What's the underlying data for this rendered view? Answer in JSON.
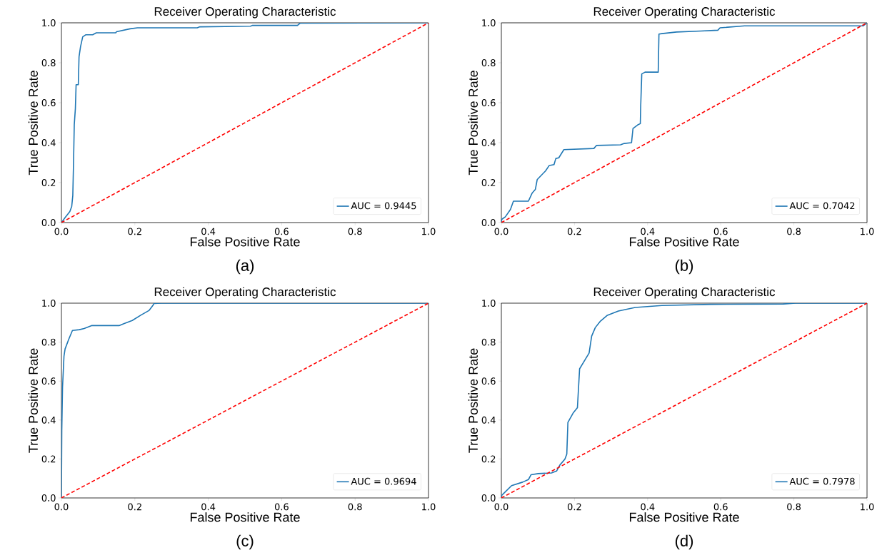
{
  "chart_data": [
    {
      "type": "line",
      "title": "Receiver Operating Characteristic",
      "xlabel": "False Positive Rate",
      "ylabel": "True Positive Rate",
      "annotations": [
        "(a)"
      ],
      "xlim": [
        0,
        1
      ],
      "ylim": [
        0,
        1
      ],
      "xticks": [
        {
          "value": 0,
          "label": "0.0"
        },
        {
          "value": 0.2,
          "label": "0.2"
        },
        {
          "value": 0.4,
          "label": "0.4"
        },
        {
          "value": 0.6,
          "label": "0.6"
        },
        {
          "value": 0.8,
          "label": "0.8"
        },
        {
          "value": 1,
          "label": "1.0"
        }
      ],
      "yticks": [
        {
          "value": 0,
          "label": "0.0"
        },
        {
          "value": 0.2,
          "label": "0.2"
        },
        {
          "value": 0.4,
          "label": "0.4"
        },
        {
          "value": 0.6,
          "label": "0.6"
        },
        {
          "value": 0.8,
          "label": "0.8"
        },
        {
          "value": 1,
          "label": "1.0"
        }
      ],
      "legend": "bottom right",
      "series": [
        {
          "name": "AUC = 0.9445",
          "color": "#1f77b4",
          "line_style": "solid",
          "x": [
            0,
            0.01,
            0.023,
            0.028,
            0.031,
            0.033,
            0.035,
            0.038,
            0.04,
            0.046,
            0.048,
            0.052,
            0.058,
            0.066,
            0.085,
            0.095,
            0.148,
            0.15,
            0.187,
            0.207,
            0.37,
            0.377,
            0.515,
            0.52,
            0.643,
            0.65,
            1
          ],
          "values": [
            0,
            0.025,
            0.055,
            0.08,
            0.135,
            0.3,
            0.49,
            0.57,
            0.69,
            0.69,
            0.83,
            0.88,
            0.93,
            0.94,
            0.94,
            0.95,
            0.95,
            0.955,
            0.97,
            0.975,
            0.975,
            0.98,
            0.983,
            0.987,
            0.987,
            0.998,
            1
          ]
        },
        {
          "color": "#ff0000",
          "line_style": "dashed",
          "x": [
            0,
            1
          ],
          "values": [
            0,
            1
          ]
        }
      ]
    },
    {
      "type": "line",
      "title": "Receiver Operating Characteristic",
      "xlabel": "False Positive Rate",
      "ylabel": "True Positive Rate",
      "annotations": [
        "(b)"
      ],
      "xlim": [
        0,
        1
      ],
      "ylim": [
        0,
        1
      ],
      "xticks": [
        {
          "value": 0,
          "label": "0.0"
        },
        {
          "value": 0.2,
          "label": "0.2"
        },
        {
          "value": 0.4,
          "label": "0.4"
        },
        {
          "value": 0.6,
          "label": "0.6"
        },
        {
          "value": 0.8,
          "label": "0.8"
        },
        {
          "value": 1,
          "label": "1.0"
        }
      ],
      "yticks": [
        {
          "value": 0,
          "label": "0.0"
        },
        {
          "value": 0.2,
          "label": "0.2"
        },
        {
          "value": 0.4,
          "label": "0.4"
        },
        {
          "value": 0.6,
          "label": "0.6"
        },
        {
          "value": 0.8,
          "label": "0.8"
        },
        {
          "value": 1,
          "label": "1.0"
        }
      ],
      "legend": "bottom right",
      "series": [
        {
          "name": "AUC = 0.7042",
          "color": "#1f77b4",
          "line_style": "solid",
          "x": [
            0,
            0.001,
            0.011,
            0.025,
            0.033,
            0.074,
            0.084,
            0.093,
            0.098,
            0.121,
            0.131,
            0.144,
            0.149,
            0.157,
            0.171,
            0.253,
            0.26,
            0.326,
            0.336,
            0.356,
            0.36,
            0.373,
            0.38,
            0.381,
            0.384,
            0.393,
            0.429,
            0.431,
            0.439,
            0.479,
            0.545,
            0.592,
            0.598,
            0.665,
            0.99,
            1
          ],
          "values": [
            0,
            0.016,
            0.029,
            0.066,
            0.107,
            0.107,
            0.147,
            0.166,
            0.215,
            0.259,
            0.286,
            0.29,
            0.321,
            0.324,
            0.365,
            0.371,
            0.386,
            0.389,
            0.396,
            0.4,
            0.471,
            0.489,
            0.495,
            0.576,
            0.744,
            0.753,
            0.753,
            0.944,
            0.946,
            0.954,
            0.959,
            0.963,
            0.975,
            0.985,
            0.985,
            1
          ]
        },
        {
          "color": "#ff0000",
          "line_style": "dashed",
          "x": [
            0,
            1
          ],
          "values": [
            0,
            1
          ]
        }
      ]
    },
    {
      "type": "line",
      "title": "Receiver Operating Characteristic",
      "xlabel": "False Positive Rate",
      "ylabel": "True Positive Rate",
      "annotations": [
        "(c)"
      ],
      "xlim": [
        0,
        1
      ],
      "ylim": [
        0,
        1
      ],
      "xticks": [
        {
          "value": 0,
          "label": "0.0"
        },
        {
          "value": 0.2,
          "label": "0.2"
        },
        {
          "value": 0.4,
          "label": "0.4"
        },
        {
          "value": 0.6,
          "label": "0.6"
        },
        {
          "value": 0.8,
          "label": "0.8"
        },
        {
          "value": 1,
          "label": "1.0"
        }
      ],
      "yticks": [
        {
          "value": 0,
          "label": "0.0"
        },
        {
          "value": 0.2,
          "label": "0.2"
        },
        {
          "value": 0.4,
          "label": "0.4"
        },
        {
          "value": 0.6,
          "label": "0.6"
        },
        {
          "value": 0.8,
          "label": "0.8"
        },
        {
          "value": 1,
          "label": "1.0"
        }
      ],
      "legend": "bottom right",
      "series": [
        {
          "name": "AUC = 0.9694",
          "color": "#1f77b4",
          "line_style": "solid",
          "x": [
            0,
            0.001,
            0.003,
            0.007,
            0.01,
            0.02,
            0.03,
            0.049,
            0.062,
            0.082,
            0.157,
            0.17,
            0.193,
            0.216,
            0.239,
            0.249,
            0.252,
            0.272,
            1
          ],
          "values": [
            0,
            0.345,
            0.568,
            0.728,
            0.765,
            0.815,
            0.86,
            0.864,
            0.87,
            0.885,
            0.885,
            0.895,
            0.911,
            0.938,
            0.963,
            0.988,
            0.998,
            1,
            1
          ]
        },
        {
          "color": "#ff0000",
          "line_style": "dashed",
          "x": [
            0,
            1
          ],
          "values": [
            0,
            1
          ]
        }
      ]
    },
    {
      "type": "line",
      "title": "Receiver Operating Characteristic",
      "xlabel": "False Positive Rate",
      "ylabel": "True Positive Rate",
      "annotations": [
        "(d)"
      ],
      "xlim": [
        0,
        1
      ],
      "ylim": [
        0,
        1
      ],
      "xticks": [
        {
          "value": 0,
          "label": "0.0"
        },
        {
          "value": 0.2,
          "label": "0.2"
        },
        {
          "value": 0.4,
          "label": "0.4"
        },
        {
          "value": 0.6,
          "label": "0.6"
        },
        {
          "value": 0.8,
          "label": "0.8"
        },
        {
          "value": 1,
          "label": "1.0"
        }
      ],
      "yticks": [
        {
          "value": 0,
          "label": "0.0"
        },
        {
          "value": 0.2,
          "label": "0.2"
        },
        {
          "value": 0.4,
          "label": "0.4"
        },
        {
          "value": 0.6,
          "label": "0.6"
        },
        {
          "value": 0.8,
          "label": "0.8"
        },
        {
          "value": 1,
          "label": "1.0"
        }
      ],
      "legend": "bottom right",
      "series": [
        {
          "name": "AUC = 0.7978",
          "color": "#1f77b4",
          "line_style": "solid",
          "x": [
            0,
            0.001,
            0.028,
            0.058,
            0.074,
            0.081,
            0.101,
            0.137,
            0.151,
            0.16,
            0.174,
            0.179,
            0.182,
            0.197,
            0.208,
            0.214,
            0.23,
            0.24,
            0.247,
            0.257,
            0.27,
            0.29,
            0.32,
            0.366,
            0.439,
            0.572,
            0.771,
            0.805,
            1
          ],
          "values": [
            0,
            0.013,
            0.063,
            0.081,
            0.094,
            0.119,
            0.125,
            0.128,
            0.138,
            0.169,
            0.2,
            0.225,
            0.388,
            0.438,
            0.463,
            0.663,
            0.713,
            0.744,
            0.831,
            0.875,
            0.906,
            0.938,
            0.96,
            0.978,
            0.988,
            0.994,
            0.996,
            1,
            1
          ]
        },
        {
          "color": "#ff0000",
          "line_style": "dashed",
          "x": [
            0,
            1
          ],
          "values": [
            0,
            1
          ]
        }
      ]
    }
  ]
}
